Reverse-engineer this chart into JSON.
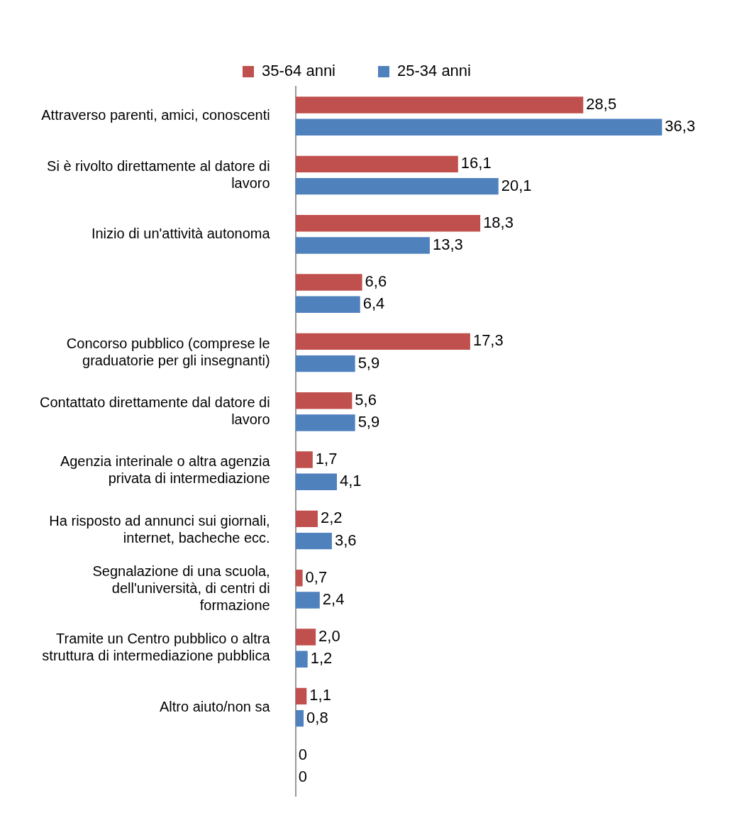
{
  "chart_data": {
    "type": "bar",
    "orientation": "horizontal",
    "legend": "top",
    "grid": false,
    "tick_labels": "y",
    "categories": [
      "Attraverso parenti, amici, conoscenti",
      "Si è rivolto direttamente al datore di lavoro",
      "Inizio di un'attività autonoma",
      null,
      "Concorso pubblico (comprese le graduatorie per gli insegnanti)",
      "Contattato direttamente dal datore di lavoro",
      "Agenzia interinale o altra agenzia privata di intermediazione",
      "Ha risposto ad annunci sui giornali, internet, bacheche ecc.",
      "Segnalazione di una scuola, dell'università, di centri di formazione",
      "Tramite un Centro pubblico o altra struttura di intermediazione pubblica",
      "Altro aiuto/non sa",
      null
    ],
    "series": [
      {
        "name": "35-64 anni",
        "color": "#c0504d",
        "values": [
          28.5,
          16.1,
          18.3,
          6.6,
          17.3,
          5.6,
          1.7,
          2.2,
          0.7,
          2.0,
          1.1,
          0
        ],
        "value_labels": [
          "28,5",
          "16,1",
          "18,3",
          "6,6",
          "17,3",
          "5,6",
          "1,7",
          "2,2",
          "0,7",
          "2,0",
          "1,1",
          "0"
        ]
      },
      {
        "name": "25-34 anni",
        "color": "#4f81bd",
        "values": [
          36.3,
          20.1,
          13.3,
          6.4,
          5.9,
          5.9,
          4.1,
          3.6,
          2.4,
          1.2,
          0.8,
          0
        ],
        "value_labels": [
          "36,3",
          "20,1",
          "13,3",
          "6,4",
          "5,9",
          "5,9",
          "4,1",
          "3,6",
          "2,4",
          "1,2",
          "0,8",
          "0"
        ]
      }
    ]
  }
}
